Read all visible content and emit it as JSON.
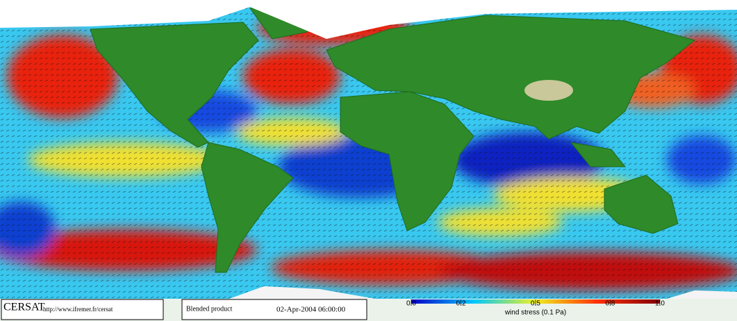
{
  "footer": {
    "logo": "CERSAT",
    "url": "http://www.ifremer.fr/cersat",
    "product": "Blended product",
    "date": "02-Apr-2004 06:00:00"
  },
  "colorbar": {
    "label": "wind stress (0.1 Pa)",
    "lim": [
      0,
      1
    ],
    "ticks": [
      {
        "value": 0,
        "label": "0.0"
      },
      0.2,
      0.5,
      0.8,
      {
        "value": 1,
        "label": "1.0"
      }
    ]
  }
}
